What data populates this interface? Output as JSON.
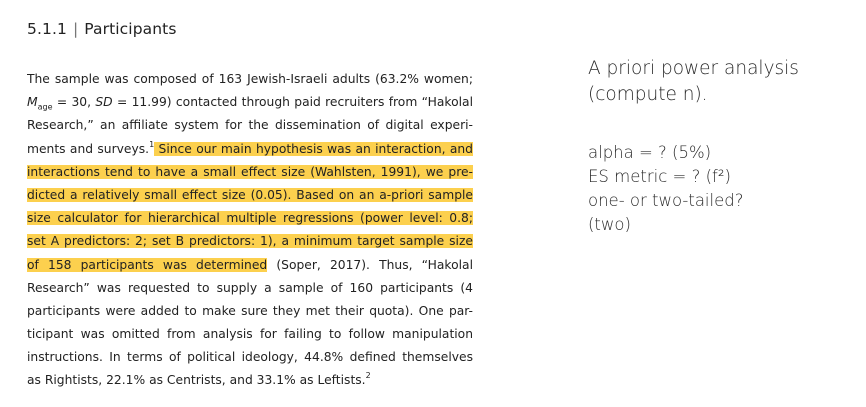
{
  "section": {
    "number": "5.1.1",
    "separator": "|",
    "title": "Participants"
  },
  "paragraph": {
    "lines": [
      {
        "segments": [
          {
            "text": "The sample was composed of 163 Jewish-Israeli adults (63.2% women;",
            "highlight": false
          }
        ]
      },
      {
        "segments": [
          {
            "text": "M",
            "italic": true
          },
          {
            "text": "age",
            "sub": true
          },
          {
            "text": " = 30, "
          },
          {
            "text": "SD",
            "italic": true
          },
          {
            "text": " = 11.99) contacted through paid recruiters from “Hakolal"
          }
        ]
      },
      {
        "segments": [
          {
            "text": "Research,” an affiliate system for the dissemination of digital experi-"
          }
        ]
      },
      {
        "segments": [
          {
            "text": "ments and surveys."
          },
          {
            "text": "1",
            "sup": true
          },
          {
            "text": " Since our main hypothesis was an interaction, and",
            "highlight": true
          }
        ]
      },
      {
        "segments": [
          {
            "text": "interactions tend to have a small effect size (Wahlsten, 1991), we pre-",
            "highlight": true
          }
        ]
      },
      {
        "segments": [
          {
            "text": "dicted a relatively small effect size (0.05). Based on an a-priori sample",
            "highlight": true
          }
        ]
      },
      {
        "segments": [
          {
            "text": "size calculator for hierarchical multiple regressions (power level: 0.8;",
            "highlight": true
          }
        ]
      },
      {
        "segments": [
          {
            "text": "set A predictors: 2; set B predictors: 1), a minimum target sample size",
            "highlight": true
          }
        ]
      },
      {
        "segments": [
          {
            "text": "of 158 participants was determined",
            "highlight": true
          },
          {
            "text": " (Soper, 2017). Thus, “Hakolal"
          }
        ]
      },
      {
        "segments": [
          {
            "text": "Research” was requested to supply a sample of 160 participants (4"
          }
        ]
      },
      {
        "segments": [
          {
            "text": "participants were added to make sure they met their quota). One par-"
          }
        ]
      },
      {
        "segments": [
          {
            "text": "ticipant was omitted from analysis for failing to follow manipulation"
          }
        ]
      },
      {
        "segments": [
          {
            "text": "instructions. In terms of political ideology, 44.8% defined themselves"
          }
        ]
      },
      {
        "segments": [
          {
            "text": "as Rightists, 22.1% as Centrists, and 33.1% as Leftists."
          },
          {
            "text": "2",
            "sup": true
          }
        ]
      }
    ]
  },
  "notes": {
    "title_lines": [
      "A priori power analysis",
      "(compute n)."
    ],
    "items": [
      "alpha = ? (5%)",
      "ES metric = ?  (f²)",
      "one- or two-tailed?",
      "(two)"
    ]
  },
  "colors": {
    "highlight": "#fcd04e",
    "text": "#222222"
  }
}
